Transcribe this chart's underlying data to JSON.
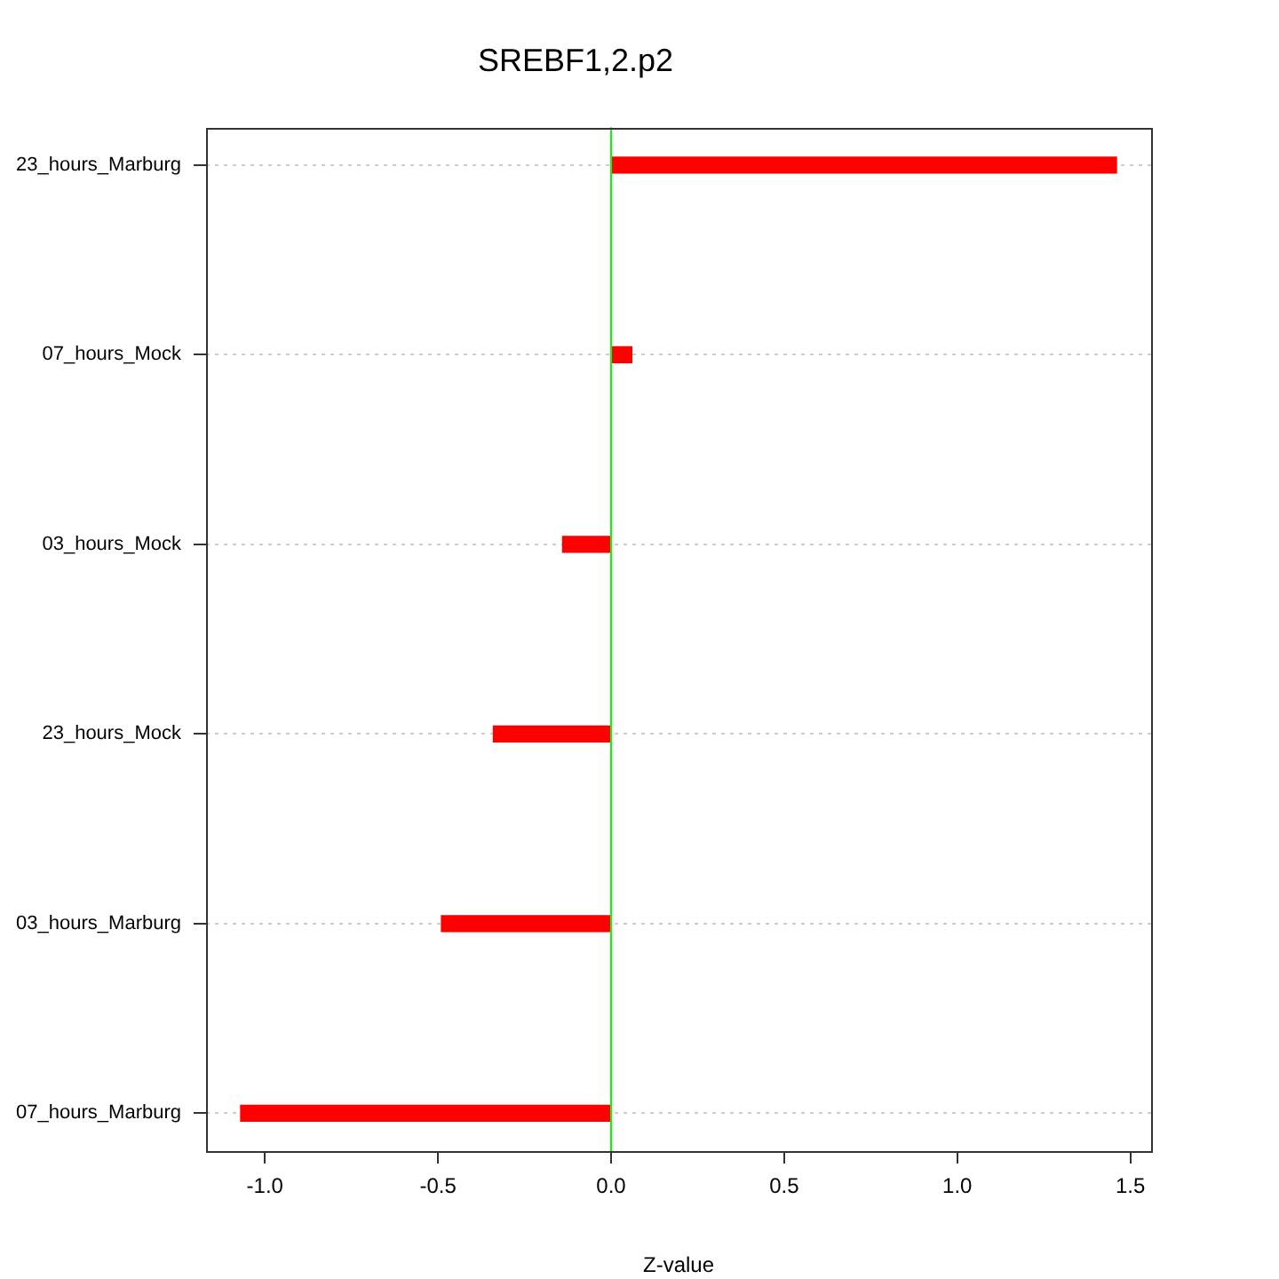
{
  "chart_data": {
    "type": "bar",
    "orientation": "horizontal",
    "title": "SREBF1,2.p2",
    "xlabel": "Z-value",
    "categories": [
      "23_hours_Marburg",
      "07_hours_Mock",
      "03_hours_Mock",
      "23_hours_Mock",
      "03_hours_Marburg",
      "07_hours_Marburg"
    ],
    "values": [
      1.46,
      0.06,
      -0.14,
      -0.34,
      -0.49,
      -1.07
    ],
    "color": "#ff0000",
    "xlim": [
      -1.17,
      1.56
    ],
    "xticks": [
      {
        "value": -1,
        "label": "-1.0"
      },
      -0.5,
      {
        "value": 0,
        "label": "0.0"
      },
      0.5,
      {
        "value": 1,
        "label": "1.0"
      },
      1.5
    ],
    "grid": "y",
    "ref_lines": [
      {
        "axis": "x",
        "value": 0,
        "color": "#00ff00"
      }
    ]
  }
}
